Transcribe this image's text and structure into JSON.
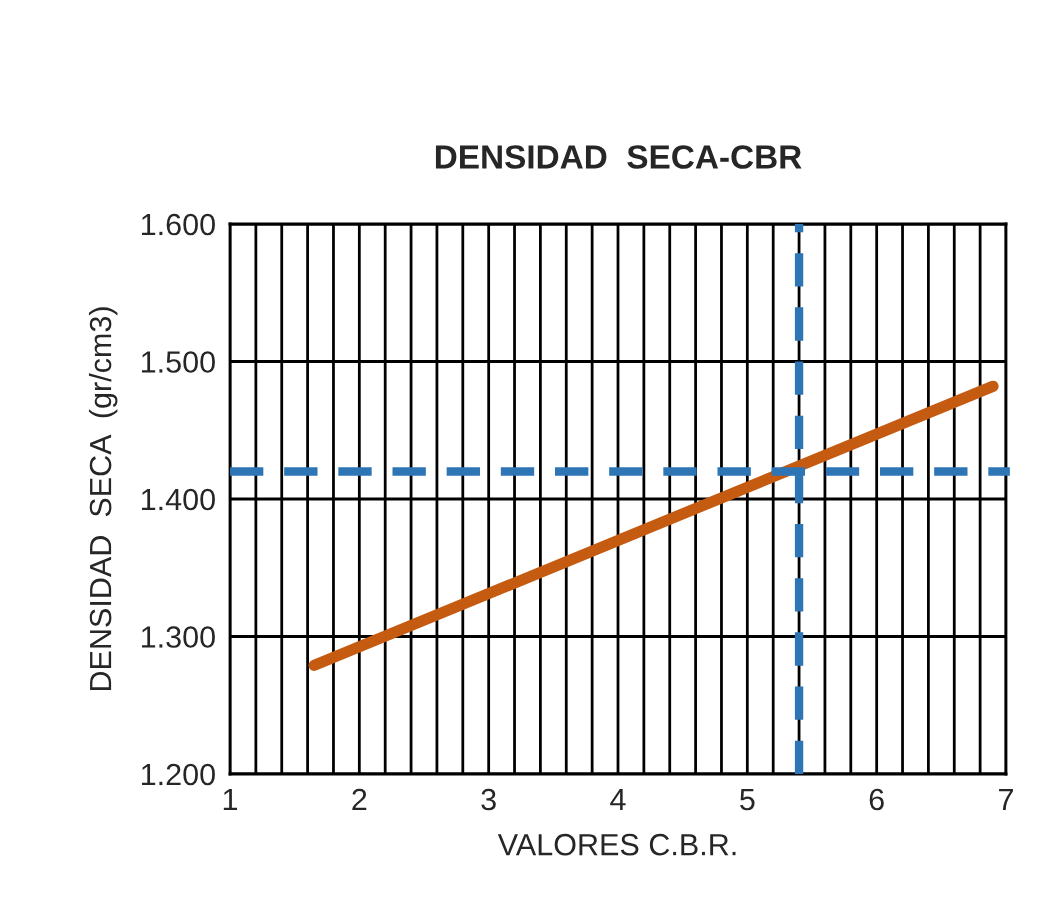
{
  "chart_data": {
    "type": "line",
    "title": "DENSIDAD  SECA-CBR",
    "xlabel": "VALORES C.B.R.",
    "ylabel": "DENSIDAD  SECA  (gr/cm3)",
    "series": [
      {
        "color": "#c55a11",
        "x": [
          1.65,
          6.9
        ],
        "values": [
          1.279,
          1.482
        ]
      }
    ],
    "xlim": [
      1,
      7
    ],
    "xticks": [
      1,
      {
        "value": 1.2,
        "label": null
      },
      {
        "value": 1.4,
        "label": null
      },
      {
        "value": 1.6,
        "label": null
      },
      {
        "value": 1.8,
        "label": null
      },
      2,
      {
        "value": 2.2,
        "label": null
      },
      {
        "value": 2.4,
        "label": null
      },
      {
        "value": 2.6,
        "label": null
      },
      {
        "value": 2.8,
        "label": null
      },
      3,
      {
        "value": 3.2,
        "label": null
      },
      {
        "value": 3.4,
        "label": null
      },
      {
        "value": 3.6,
        "label": null
      },
      {
        "value": 3.8,
        "label": null
      },
      4,
      {
        "value": 4.2,
        "label": null
      },
      {
        "value": 4.4,
        "label": null
      },
      {
        "value": 4.6,
        "label": null
      },
      {
        "value": 4.8,
        "label": null
      },
      5,
      {
        "value": 5.2,
        "label": null
      },
      {
        "value": 5.4,
        "label": null
      },
      {
        "value": 5.6,
        "label": null
      },
      {
        "value": 5.8,
        "label": null
      },
      6,
      {
        "value": 6.2,
        "label": null
      },
      {
        "value": 6.4,
        "label": null
      },
      {
        "value": 6.6,
        "label": null
      },
      {
        "value": 6.8,
        "label": null
      },
      7
    ],
    "ylim": [
      1.2,
      1.6
    ],
    "yticks": [
      {
        "value": 1.2,
        "label": "1.200"
      },
      {
        "value": 1.3,
        "label": "1.300"
      },
      {
        "value": 1.4,
        "label": "1.400"
      },
      {
        "value": 1.5,
        "label": "1.500"
      },
      {
        "value": 1.6,
        "label": "1.600"
      }
    ],
    "grid": true,
    "marker": "none",
    "line_style": "solid",
    "ref_lines": [
      {
        "axis": "y",
        "value": 1.42,
        "color": "#2e75b6",
        "line_style": "dashed"
      },
      {
        "axis": "x",
        "value": 5.4,
        "color": "#2e75b6",
        "line_style": "dashed"
      }
    ]
  }
}
